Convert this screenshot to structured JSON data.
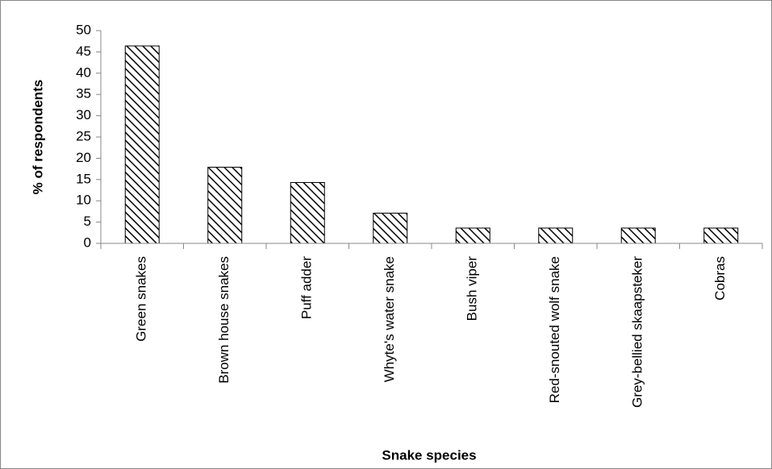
{
  "chart_data": {
    "type": "bar",
    "x_label": "Snake species",
    "y_label": "% of respondents",
    "categories": [
      "Green snakes",
      "Brown house snakes",
      "Puff adder",
      "Whyte's water snake",
      "Bush viper",
      "Red-snouted wolf snake",
      "Grey-bellied skaapsteker",
      "Cobras"
    ],
    "values": [
      46.4,
      17.9,
      14.3,
      7.1,
      3.6,
      3.6,
      3.6,
      3.6
    ],
    "color": "#000000",
    "pattern": "diagonal-hatch",
    "ylim": [
      0,
      50
    ],
    "yticks": [
      0,
      5,
      10,
      15,
      20,
      25,
      30,
      35,
      40,
      45,
      50
    ],
    "grid": false
  }
}
